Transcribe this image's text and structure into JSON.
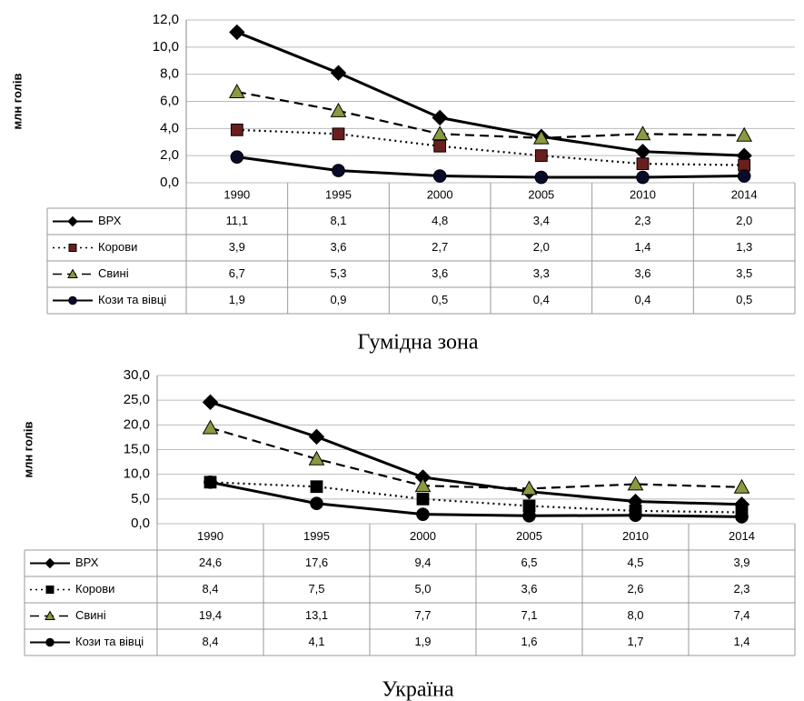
{
  "chart_data": [
    {
      "type": "line",
      "title": "Гумідна зона",
      "y_label": "млн голів",
      "categories": [
        "1990",
        "1995",
        "2000",
        "2005",
        "2010",
        "2014"
      ],
      "ylim": [
        0,
        12
      ],
      "yticks": [
        {
          "value": 0,
          "label": "0,0"
        },
        {
          "value": 2,
          "label": "2,0"
        },
        {
          "value": 4,
          "label": "4,0"
        },
        {
          "value": 6,
          "label": "6,0"
        },
        {
          "value": 8,
          "label": "8,0"
        },
        {
          "value": 10,
          "label": "10,0"
        },
        {
          "value": 12,
          "label": "12,0"
        }
      ],
      "grid": true,
      "series": [
        {
          "name": "ВРХ",
          "color": "#000000",
          "marker": "diamond",
          "marker_color": "#000000",
          "dash": "solid",
          "values": [
            11.1,
            8.1,
            4.8,
            3.4,
            2.3,
            2.0
          ],
          "value_labels": [
            "11,1",
            "8,1",
            "4,8",
            "3,4",
            "2,3",
            "2,0"
          ]
        },
        {
          "name": "Корови",
          "color": "#000000",
          "marker": "square",
          "marker_color": "#6b1e1e",
          "dash": "dotted",
          "values": [
            3.9,
            3.6,
            2.7,
            2.0,
            1.4,
            1.3
          ],
          "value_labels": [
            "3,9",
            "3,6",
            "2,7",
            "2,0",
            "1,4",
            "1,3"
          ]
        },
        {
          "name": "Свині",
          "color": "#000000",
          "marker": "triangle",
          "marker_color": "#8a9a40",
          "dash": "dashed",
          "values": [
            6.7,
            5.3,
            3.6,
            3.3,
            3.6,
            3.5
          ],
          "value_labels": [
            "6,7",
            "5,3",
            "3,6",
            "3,3",
            "3,6",
            "3,5"
          ]
        },
        {
          "name": "Кози та вівці",
          "color": "#000000",
          "marker": "circle",
          "marker_color": "#0a0a2a",
          "dash": "solid",
          "values": [
            1.9,
            0.9,
            0.5,
            0.4,
            0.4,
            0.5
          ],
          "value_labels": [
            "1,9",
            "0,9",
            "0,5",
            "0,4",
            "0,4",
            "0,5"
          ]
        }
      ]
    },
    {
      "type": "line",
      "title": "Україна",
      "y_label": "млн голів",
      "categories": [
        "1990",
        "1995",
        "2000",
        "2005",
        "2010",
        "2014"
      ],
      "ylim": [
        0,
        30
      ],
      "yticks": [
        {
          "value": 0,
          "label": "0,0"
        },
        {
          "value": 5,
          "label": "5,0"
        },
        {
          "value": 10,
          "label": "10,0"
        },
        {
          "value": 15,
          "label": "15,0"
        },
        {
          "value": 20,
          "label": "20,0"
        },
        {
          "value": 25,
          "label": "25,0"
        },
        {
          "value": 30,
          "label": "30,0"
        }
      ],
      "grid": true,
      "series": [
        {
          "name": "ВРХ",
          "color": "#000000",
          "marker": "diamond",
          "marker_color": "#000000",
          "dash": "solid",
          "values": [
            24.6,
            17.6,
            9.4,
            6.5,
            4.5,
            3.9
          ],
          "value_labels": [
            "24,6",
            "17,6",
            "9,4",
            "6,5",
            "4,5",
            "3,9"
          ]
        },
        {
          "name": "Корови",
          "color": "#000000",
          "marker": "square",
          "marker_color": "#000000",
          "dash": "dotted",
          "values": [
            8.4,
            7.5,
            5.0,
            3.6,
            2.6,
            2.3
          ],
          "value_labels": [
            "8,4",
            "7,5",
            "5,0",
            "3,6",
            "2,6",
            "2,3"
          ]
        },
        {
          "name": "Свині",
          "color": "#000000",
          "marker": "triangle",
          "marker_color": "#8a9a40",
          "dash": "dashed",
          "values": [
            19.4,
            13.1,
            7.7,
            7.1,
            8.0,
            7.4
          ],
          "value_labels": [
            "19,4",
            "13,1",
            "7,7",
            "7,1",
            "8,0",
            "7,4"
          ]
        },
        {
          "name": "Кози та вівці",
          "color": "#000000",
          "marker": "circle",
          "marker_color": "#000000",
          "dash": "solid",
          "values": [
            8.4,
            4.1,
            1.9,
            1.6,
            1.7,
            1.4
          ],
          "value_labels": [
            "8,4",
            "4,1",
            "1,9",
            "1,6",
            "1,7",
            "1,4"
          ]
        }
      ]
    }
  ]
}
